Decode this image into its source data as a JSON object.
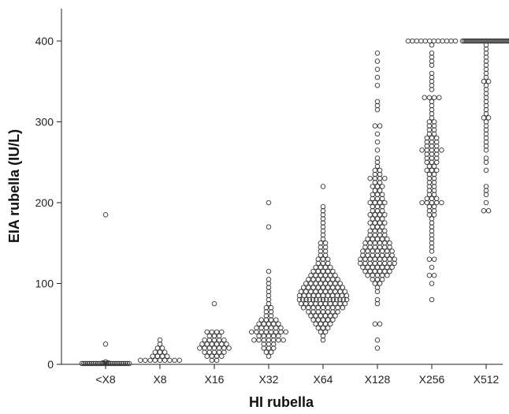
{
  "chart_data": {
    "type": "scatter",
    "subtype": "dot-strip",
    "title": "",
    "xlabel": "HI rubella",
    "ylabel": "EIA rubella (IU/L)",
    "ylim": [
      0,
      440
    ],
    "yticks": [
      0,
      100,
      200,
      300,
      400
    ],
    "categories": [
      "<X8",
      "X8",
      "X16",
      "X32",
      "X64",
      "X128",
      "X256",
      "X512"
    ],
    "marker": "open-circle",
    "grid": false,
    "series": [
      {
        "category": "<X8",
        "values": [
          185,
          25,
          3,
          2,
          2,
          1,
          1,
          1,
          1,
          1,
          1,
          1,
          1,
          1,
          1,
          1,
          1,
          1,
          1,
          1,
          1,
          1,
          1,
          1,
          1,
          1,
          1,
          1,
          1,
          1,
          1
        ]
      },
      {
        "category": "X8",
        "values": [
          30,
          25,
          20,
          20,
          15,
          15,
          15,
          10,
          10,
          10,
          10,
          5,
          5,
          5,
          5,
          5,
          5,
          5,
          5,
          5
        ]
      },
      {
        "category": "X16",
        "values": [
          75,
          40,
          40,
          40,
          40,
          35,
          35,
          35,
          30,
          30,
          30,
          30,
          30,
          25,
          25,
          25,
          25,
          25,
          25,
          20,
          20,
          20,
          20,
          20,
          20,
          20,
          15,
          15,
          15,
          15,
          15,
          10,
          10,
          10,
          10,
          5,
          5
        ]
      },
      {
        "category": "X32",
        "values": [
          200,
          170,
          115,
          105,
          100,
          95,
          90,
          85,
          80,
          75,
          70,
          70,
          65,
          65,
          60,
          60,
          55,
          55,
          55,
          55,
          50,
          50,
          50,
          50,
          50,
          45,
          45,
          45,
          45,
          45,
          45,
          40,
          40,
          40,
          40,
          40,
          40,
          40,
          40,
          35,
          35,
          35,
          35,
          35,
          30,
          30,
          30,
          30,
          30,
          30,
          30,
          25,
          25,
          25,
          20,
          20,
          20,
          15,
          15,
          10
        ]
      },
      {
        "category": "X64",
        "values": [
          220,
          195,
          190,
          185,
          180,
          175,
          170,
          165,
          160,
          155,
          150,
          150,
          145,
          145,
          140,
          140,
          135,
          135,
          130,
          130,
          130,
          125,
          125,
          125,
          120,
          120,
          120,
          120,
          115,
          115,
          115,
          115,
          115,
          110,
          110,
          110,
          110,
          110,
          110,
          105,
          105,
          105,
          105,
          105,
          105,
          105,
          100,
          100,
          100,
          100,
          100,
          100,
          100,
          100,
          95,
          95,
          95,
          95,
          95,
          95,
          95,
          95,
          95,
          90,
          90,
          90,
          90,
          90,
          90,
          90,
          90,
          90,
          90,
          85,
          85,
          85,
          85,
          85,
          85,
          85,
          85,
          85,
          85,
          85,
          80,
          80,
          80,
          80,
          80,
          80,
          80,
          80,
          80,
          80,
          80,
          80,
          80,
          80,
          80,
          75,
          75,
          75,
          75,
          75,
          75,
          75,
          75,
          75,
          75,
          70,
          70,
          70,
          70,
          70,
          70,
          70,
          70,
          70,
          65,
          65,
          65,
          65,
          65,
          65,
          65,
          60,
          60,
          60,
          60,
          60,
          60,
          55,
          55,
          55,
          55,
          55,
          50,
          50,
          50,
          50,
          45,
          45,
          45,
          40,
          40,
          35,
          30
        ]
      },
      {
        "category": "X128",
        "values": [
          385,
          375,
          365,
          355,
          345,
          325,
          320,
          315,
          295,
          295,
          285,
          275,
          265,
          255,
          250,
          245,
          240,
          240,
          235,
          235,
          230,
          230,
          230,
          230,
          225,
          225,
          220,
          220,
          220,
          215,
          215,
          210,
          210,
          210,
          205,
          205,
          205,
          200,
          200,
          200,
          200,
          195,
          195,
          195,
          190,
          190,
          190,
          185,
          185,
          185,
          185,
          180,
          180,
          180,
          175,
          175,
          175,
          175,
          170,
          170,
          170,
          165,
          165,
          165,
          165,
          160,
          160,
          160,
          160,
          155,
          155,
          155,
          155,
          155,
          150,
          150,
          150,
          150,
          150,
          150,
          145,
          145,
          145,
          145,
          145,
          145,
          140,
          140,
          140,
          140,
          140,
          140,
          140,
          135,
          135,
          135,
          135,
          135,
          135,
          135,
          130,
          130,
          130,
          130,
          130,
          130,
          130,
          130,
          125,
          125,
          125,
          125,
          125,
          125,
          125,
          125,
          120,
          120,
          120,
          120,
          120,
          120,
          120,
          115,
          115,
          115,
          115,
          115,
          115,
          110,
          110,
          110,
          110,
          110,
          105,
          105,
          105,
          100,
          100,
          95,
          90,
          80,
          75,
          50,
          50,
          30,
          20
        ]
      },
      {
        "category": "X256",
        "values": [
          400,
          400,
          400,
          400,
          400,
          400,
          400,
          400,
          400,
          400,
          400,
          400,
          395,
          385,
          380,
          375,
          370,
          360,
          355,
          350,
          345,
          340,
          330,
          330,
          330,
          330,
          325,
          320,
          315,
          310,
          305,
          300,
          300,
          295,
          295,
          290,
          290,
          285,
          285,
          280,
          280,
          280,
          275,
          275,
          275,
          270,
          270,
          270,
          265,
          265,
          265,
          265,
          265,
          260,
          260,
          260,
          255,
          255,
          255,
          250,
          250,
          250,
          245,
          245,
          240,
          240,
          240,
          235,
          235,
          230,
          230,
          225,
          225,
          220,
          220,
          215,
          215,
          210,
          210,
          205,
          205,
          205,
          200,
          200,
          200,
          200,
          200,
          195,
          195,
          190,
          190,
          185,
          185,
          180,
          175,
          170,
          165,
          160,
          155,
          150,
          145,
          140,
          130,
          130,
          120,
          110,
          110,
          100,
          80
        ]
      },
      {
        "category": "X512",
        "values": [
          400,
          400,
          400,
          400,
          400,
          400,
          400,
          400,
          400,
          400,
          400,
          400,
          400,
          400,
          400,
          400,
          400,
          400,
          400,
          400,
          400,
          400,
          400,
          400,
          400,
          400,
          400,
          400,
          400,
          400,
          400,
          395,
          390,
          385,
          380,
          375,
          370,
          365,
          360,
          355,
          350,
          350,
          345,
          340,
          335,
          330,
          325,
          320,
          315,
          310,
          305,
          305,
          300,
          295,
          290,
          285,
          280,
          275,
          270,
          265,
          255,
          250,
          240,
          220,
          215,
          210,
          200,
          190,
          190
        ]
      }
    ]
  }
}
